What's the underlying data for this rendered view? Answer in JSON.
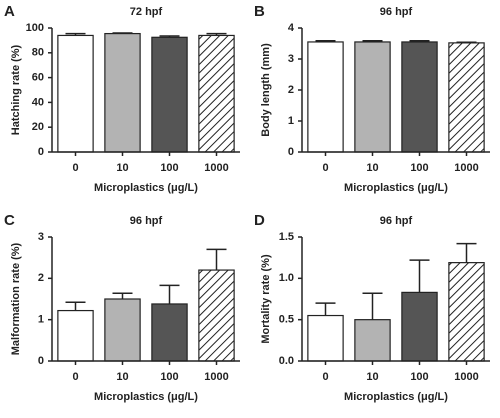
{
  "chart_data": [
    {
      "type": "bar",
      "panel": "A",
      "title": "72 hpf",
      "ylabel": "Hatching rate (%)",
      "xlabel": "Microplastics (μg/L)",
      "categories": [
        "0",
        "10",
        "100",
        "1000"
      ],
      "values": [
        94,
        95.5,
        92.5,
        94
      ],
      "errors": [
        1.5,
        0.5,
        1,
        1.5
      ],
      "colors": [
        "#ffffff",
        "#b3b3b3",
        "#555555",
        "#ffffff"
      ],
      "hatch": [
        false,
        false,
        false,
        true
      ],
      "ylim": [
        0,
        100
      ],
      "yticks": [
        0,
        20,
        40,
        60,
        80,
        100
      ]
    },
    {
      "type": "bar",
      "panel": "B",
      "title": "96 hpf",
      "ylabel": "Body length (mm)",
      "xlabel": "Microplastics (μg/L)",
      "categories": [
        "0",
        "10",
        "100",
        "1000"
      ],
      "values": [
        3.55,
        3.55,
        3.55,
        3.52
      ],
      "errors": [
        0.04,
        0.04,
        0.04,
        0.02
      ],
      "colors": [
        "#ffffff",
        "#b3b3b3",
        "#555555",
        "#ffffff"
      ],
      "hatch": [
        false,
        false,
        false,
        true
      ],
      "ylim": [
        0,
        4
      ],
      "yticks": [
        0,
        1,
        2,
        3,
        4
      ]
    },
    {
      "type": "bar",
      "panel": "C",
      "title": "96 hpf",
      "ylabel": "Malformation rate (%)",
      "xlabel": "Microplastics (μg/L)",
      "categories": [
        "0",
        "10",
        "100",
        "1000"
      ],
      "values": [
        1.22,
        1.5,
        1.38,
        2.2
      ],
      "errors": [
        0.2,
        0.14,
        0.45,
        0.5
      ],
      "colors": [
        "#ffffff",
        "#b3b3b3",
        "#555555",
        "#ffffff"
      ],
      "hatch": [
        false,
        false,
        false,
        true
      ],
      "ylim": [
        0,
        3
      ],
      "yticks": [
        0,
        1,
        2,
        3
      ]
    },
    {
      "type": "bar",
      "panel": "D",
      "title": "96 hpf",
      "ylabel": "Mortality rate (%)",
      "xlabel": "Microplastics (μg/L)",
      "categories": [
        "0",
        "10",
        "100",
        "1000"
      ],
      "values": [
        0.55,
        0.5,
        0.83,
        1.19
      ],
      "errors": [
        0.15,
        0.32,
        0.39,
        0.23
      ],
      "colors": [
        "#ffffff",
        "#b3b3b3",
        "#555555",
        "#ffffff"
      ],
      "hatch": [
        false,
        false,
        false,
        true
      ],
      "ylim": [
        0,
        1.5
      ],
      "yticks": [
        {
          "value": 0,
          "label": "0.0"
        },
        0.5,
        {
          "value": 1,
          "label": "1.0"
        },
        1.5
      ]
    }
  ]
}
